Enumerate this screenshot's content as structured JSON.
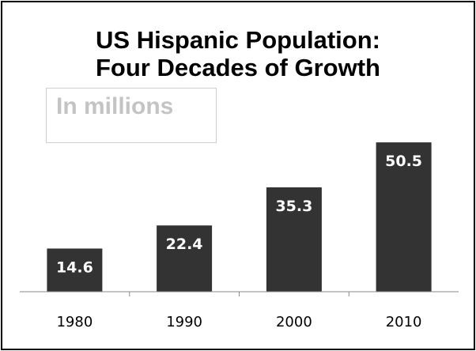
{
  "chart_data": {
    "type": "bar",
    "title_line1": "US Hispanic Population:",
    "title_line2": "Four Decades of Growth",
    "subtitle": "In millions",
    "categories": [
      "1980",
      "1990",
      "2000",
      "2010"
    ],
    "values": [
      14.6,
      22.4,
      35.3,
      50.5
    ],
    "value_labels": [
      "14.6",
      "22.4",
      "35.3",
      "50.5"
    ],
    "ylim": [
      0,
      55
    ],
    "grid": false,
    "legend": "none",
    "bar_color": "#333333",
    "label_color": "#ffffff"
  }
}
